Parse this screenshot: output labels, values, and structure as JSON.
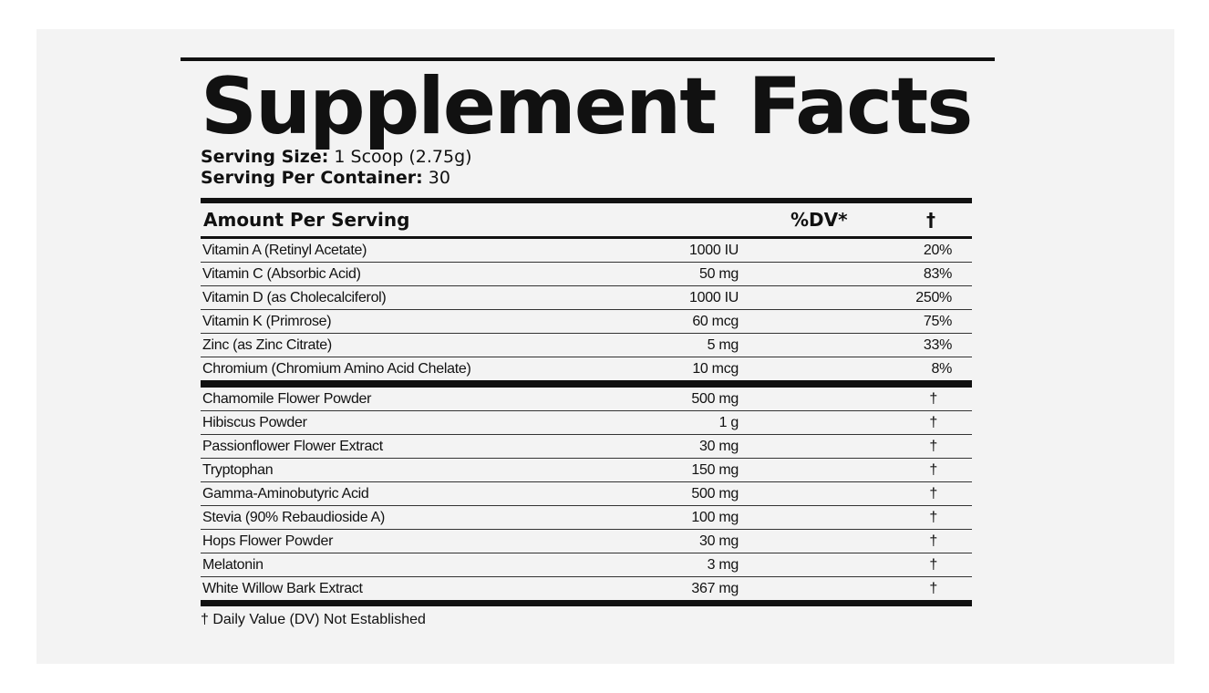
{
  "title": {
    "word1": "Supplement",
    "word2": "Facts"
  },
  "serving_size": {
    "label": "Serving Size:",
    "value": "1 Scoop (2.75g)"
  },
  "servings_per_container": {
    "label": "Serving Per Container:",
    "value": "30"
  },
  "table_header": {
    "amount": "Amount Per Serving",
    "dv": "%DV*",
    "dagger": "†"
  },
  "vitamins": [
    {
      "name": "Vitamin A (Retinyl Acetate)",
      "amount": "1000 IU",
      "dv": "20%"
    },
    {
      "name": "Vitamin C (Absorbic Acid)",
      "amount": "50 mg",
      "dv": "83%"
    },
    {
      "name": "Vitamin D (as Cholecalciferol)",
      "amount": "1000 IU",
      "dv": "250%"
    },
    {
      "name": "Vitamin K (Primrose)",
      "amount": "60 mcg",
      "dv": "75%"
    },
    {
      "name": "Zinc (as Zinc Citrate)",
      "amount": "5 mg",
      "dv": "33%"
    },
    {
      "name": "Chromium (Chromium Amino Acid Chelate)",
      "amount": "10 mcg",
      "dv": "8%"
    }
  ],
  "ingredients": [
    {
      "name": "Chamomile Flower Powder",
      "amount": "500 mg",
      "dv": "†"
    },
    {
      "name": "Hibiscus Powder",
      "amount": "1 g",
      "dv": "†"
    },
    {
      "name": "Passionflower Flower Extract",
      "amount": "30 mg",
      "dv": "†"
    },
    {
      "name": "Tryptophan",
      "amount": "150 mg",
      "dv": "†"
    },
    {
      "name": "Gamma-Aminobutyric Acid",
      "amount": "500 mg",
      "dv": "†"
    },
    {
      "name": " Stevia (90% Rebaudioside A)",
      "amount": "100 mg",
      "dv": "†"
    },
    {
      "name": "Hops Flower Powder",
      "amount": "30 mg",
      "dv": "†"
    },
    {
      "name": "Melatonin",
      "amount": "3 mg",
      "dv": "†"
    },
    {
      "name": "White Willow Bark Extract",
      "amount": "367 mg",
      "dv": "†"
    }
  ],
  "footnote": "† Daily Value (DV) Not Established"
}
